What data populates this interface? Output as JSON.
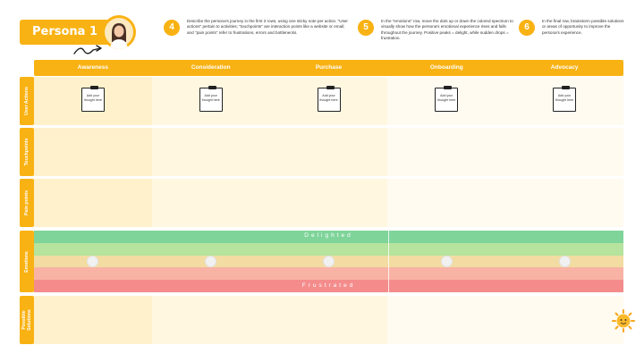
{
  "persona": {
    "title": "Persona 1"
  },
  "steps": [
    {
      "number": "4",
      "text": "Describe the persona's journey in the first 3 rows, using one sticky note per action. \"User actions\" pertain to activities; \"touchpoints\" are interaction points like a website or email; and \"pain points\" refer to frustrations, errors and bottlenecks."
    },
    {
      "number": "5",
      "text": "In the \"emotions\" row, move the dots up or down the colored spectrum to visually show how the persona's emotional experience rises and falls throughout the journey. Positive peaks = delight, while sudden drops = frustration."
    },
    {
      "number": "6",
      "text": "In the final row, brainstorm possible solutions or areas of opportunity to improve the persona's experience."
    }
  ],
  "stages": [
    "Awareness",
    "Consideration",
    "Purchase",
    "Onboarding",
    "Advocacy"
  ],
  "rows": {
    "user_actions": "User Actions",
    "touchpoints": "Touchpoints",
    "pain_points": "Pain points",
    "emotions": "Emotions",
    "solutions": "Possible Solutions"
  },
  "sticky_note_text": "Add your thought here",
  "emotions": {
    "top_label": "Delighted",
    "bottom_label": "Frustrated",
    "spectrum_colors": [
      "#7fd49a",
      "#b6e39d",
      "#f2dca1",
      "#f8b3a5",
      "#f48c8c"
    ]
  },
  "colors": {
    "accent": "#f9b213",
    "cell_a": "#fff1cc",
    "cell_b": "#fff7e0",
    "cell_c": "#fffbf0"
  }
}
